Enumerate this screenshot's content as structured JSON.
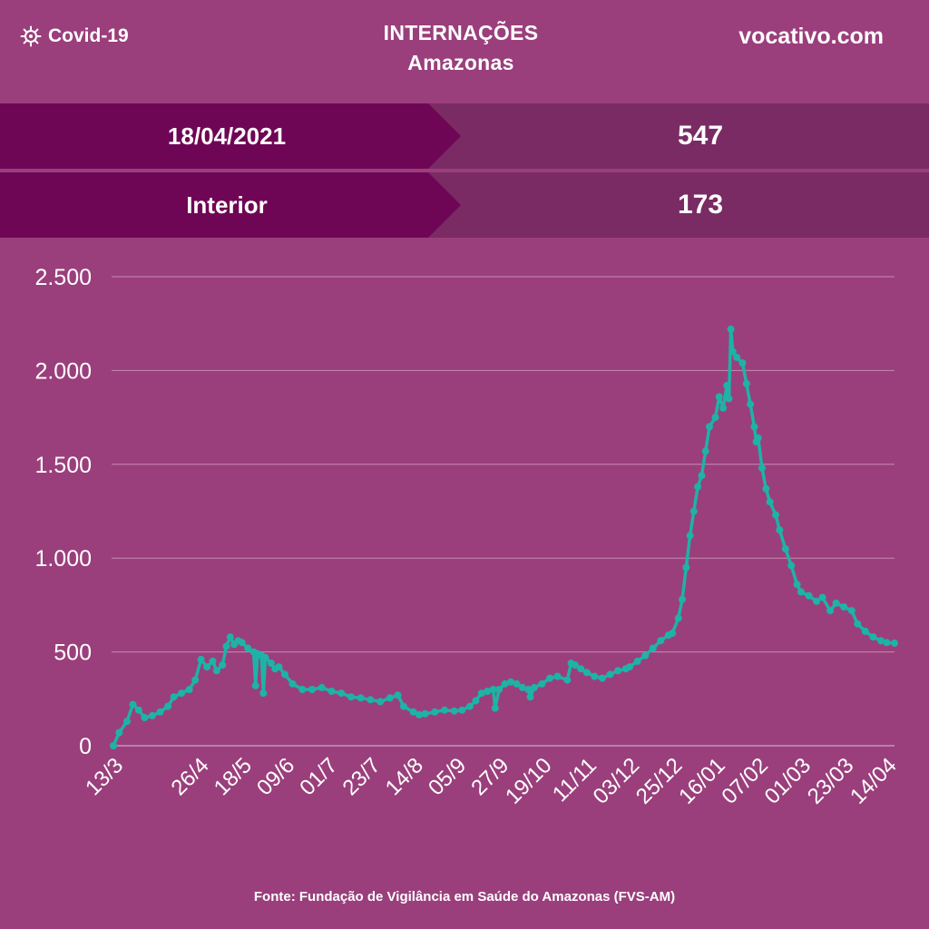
{
  "header": {
    "brand_label": "Covid-19",
    "brand_icon": "virus-icon",
    "title": "INTERNAÇÕES",
    "subtitle": "Amazonas",
    "site": "vocativo.com"
  },
  "stats": [
    {
      "label": "18/04/2021",
      "value": "547"
    },
    {
      "label": "Interior",
      "value": "173"
    }
  ],
  "colors": {
    "background": "#9a3f7c",
    "band_left": "#6f0655",
    "band_right": "#7a2b63",
    "line": "#1db3a6",
    "grid": "#c78bb2"
  },
  "footer": {
    "source": "Fonte: Fundação de Vigilância em Saúde do Amazonas (FVS-AM)"
  },
  "chart_data": {
    "type": "line",
    "title": "",
    "xlabel": "",
    "ylabel": "",
    "ylim": [
      0,
      2500
    ],
    "y_ticks": [
      0,
      500,
      1000,
      1500,
      2000,
      2500
    ],
    "y_tick_labels": [
      "0",
      "500",
      "1.000",
      "1.500",
      "2.000",
      "2.500"
    ],
    "grid": true,
    "x_tick_labels": [
      "13/3",
      "26/4",
      "18/5",
      "09/6",
      "01/7",
      "23/7",
      "14/8",
      "05/9",
      "27/9",
      "19/10",
      "11/11",
      "03/12",
      "25/12",
      "16/01",
      "07/02",
      "01/03",
      "23/03",
      "14/04"
    ],
    "x_tick_dates": [
      "2020-03-13",
      "2020-04-26",
      "2020-05-18",
      "2020-06-09",
      "2020-07-01",
      "2020-07-23",
      "2020-08-14",
      "2020-09-05",
      "2020-09-27",
      "2020-10-19",
      "2020-11-11",
      "2020-12-03",
      "2020-12-25",
      "2021-01-16",
      "2021-02-07",
      "2021-03-01",
      "2021-03-23",
      "2021-04-14"
    ],
    "series": [
      {
        "points": [
          [
            "2020-03-13",
            0
          ],
          [
            "2020-03-16",
            70
          ],
          [
            "2020-03-20",
            130
          ],
          [
            "2020-03-23",
            220
          ],
          [
            "2020-03-26",
            190
          ],
          [
            "2020-03-29",
            150
          ],
          [
            "2020-04-02",
            160
          ],
          [
            "2020-04-06",
            180
          ],
          [
            "2020-04-10",
            210
          ],
          [
            "2020-04-13",
            260
          ],
          [
            "2020-04-17",
            280
          ],
          [
            "2020-04-21",
            300
          ],
          [
            "2020-04-24",
            350
          ],
          [
            "2020-04-27",
            460
          ],
          [
            "2020-04-30",
            420
          ],
          [
            "2020-05-03",
            450
          ],
          [
            "2020-05-05",
            400
          ],
          [
            "2020-05-08",
            430
          ],
          [
            "2020-05-10",
            530
          ],
          [
            "2020-05-12",
            580
          ],
          [
            "2020-05-14",
            540
          ],
          [
            "2020-05-16",
            560
          ],
          [
            "2020-05-18",
            550
          ],
          [
            "2020-05-21",
            520
          ],
          [
            "2020-05-24",
            500
          ],
          [
            "2020-05-25",
            320
          ],
          [
            "2020-05-26",
            490
          ],
          [
            "2020-05-28",
            480
          ],
          [
            "2020-05-29",
            280
          ],
          [
            "2020-05-30",
            470
          ],
          [
            "2020-06-02",
            440
          ],
          [
            "2020-06-04",
            410
          ],
          [
            "2020-06-06",
            420
          ],
          [
            "2020-06-09",
            380
          ],
          [
            "2020-06-13",
            330
          ],
          [
            "2020-06-18",
            300
          ],
          [
            "2020-06-23",
            300
          ],
          [
            "2020-06-28",
            310
          ],
          [
            "2020-07-03",
            290
          ],
          [
            "2020-07-08",
            280
          ],
          [
            "2020-07-13",
            260
          ],
          [
            "2020-07-18",
            255
          ],
          [
            "2020-07-23",
            245
          ],
          [
            "2020-07-28",
            235
          ],
          [
            "2020-08-02",
            255
          ],
          [
            "2020-08-06",
            270
          ],
          [
            "2020-08-09",
            210
          ],
          [
            "2020-08-14",
            180
          ],
          [
            "2020-08-17",
            165
          ],
          [
            "2020-08-20",
            170
          ],
          [
            "2020-08-25",
            180
          ],
          [
            "2020-08-30",
            190
          ],
          [
            "2020-09-04",
            185
          ],
          [
            "2020-09-08",
            190
          ],
          [
            "2020-09-12",
            210
          ],
          [
            "2020-09-15",
            240
          ],
          [
            "2020-09-18",
            280
          ],
          [
            "2020-09-21",
            290
          ],
          [
            "2020-09-24",
            300
          ],
          [
            "2020-09-25",
            200
          ],
          [
            "2020-09-27",
            300
          ],
          [
            "2020-09-30",
            330
          ],
          [
            "2020-10-03",
            340
          ],
          [
            "2020-10-06",
            330
          ],
          [
            "2020-10-09",
            310
          ],
          [
            "2020-10-12",
            300
          ],
          [
            "2020-10-13",
            260
          ],
          [
            "2020-10-15",
            310
          ],
          [
            "2020-10-19",
            330
          ],
          [
            "2020-10-23",
            360
          ],
          [
            "2020-10-27",
            370
          ],
          [
            "2020-11-01",
            350
          ],
          [
            "2020-11-03",
            440
          ],
          [
            "2020-11-05",
            430
          ],
          [
            "2020-11-08",
            410
          ],
          [
            "2020-11-11",
            390
          ],
          [
            "2020-11-15",
            370
          ],
          [
            "2020-11-19",
            360
          ],
          [
            "2020-11-23",
            380
          ],
          [
            "2020-11-27",
            400
          ],
          [
            "2020-12-01",
            410
          ],
          [
            "2020-12-03",
            420
          ],
          [
            "2020-12-07",
            450
          ],
          [
            "2020-12-11",
            480
          ],
          [
            "2020-12-15",
            520
          ],
          [
            "2020-12-19",
            560
          ],
          [
            "2020-12-23",
            590
          ],
          [
            "2020-12-25",
            600
          ],
          [
            "2020-12-28",
            680
          ],
          [
            "2020-12-30",
            780
          ],
          [
            "2021-01-01",
            950
          ],
          [
            "2021-01-03",
            1120
          ],
          [
            "2021-01-05",
            1250
          ],
          [
            "2021-01-07",
            1380
          ],
          [
            "2021-01-09",
            1440
          ],
          [
            "2021-01-11",
            1570
          ],
          [
            "2021-01-13",
            1700
          ],
          [
            "2021-01-16",
            1750
          ],
          [
            "2021-01-18",
            1860
          ],
          [
            "2021-01-20",
            1800
          ],
          [
            "2021-01-22",
            1920
          ],
          [
            "2021-01-23",
            1850
          ],
          [
            "2021-01-24",
            2220
          ],
          [
            "2021-01-25",
            2100
          ],
          [
            "2021-01-27",
            2070
          ],
          [
            "2021-01-30",
            2040
          ],
          [
            "2021-02-01",
            1930
          ],
          [
            "2021-02-03",
            1820
          ],
          [
            "2021-02-05",
            1700
          ],
          [
            "2021-02-06",
            1620
          ],
          [
            "2021-02-07",
            1640
          ],
          [
            "2021-02-09",
            1480
          ],
          [
            "2021-02-11",
            1370
          ],
          [
            "2021-02-13",
            1300
          ],
          [
            "2021-02-16",
            1230
          ],
          [
            "2021-02-18",
            1150
          ],
          [
            "2021-02-21",
            1050
          ],
          [
            "2021-02-24",
            960
          ],
          [
            "2021-02-27",
            860
          ],
          [
            "2021-03-01",
            820
          ],
          [
            "2021-03-05",
            800
          ],
          [
            "2021-03-09",
            770
          ],
          [
            "2021-03-12",
            790
          ],
          [
            "2021-03-16",
            720
          ],
          [
            "2021-03-19",
            760
          ],
          [
            "2021-03-23",
            740
          ],
          [
            "2021-03-27",
            720
          ],
          [
            "2021-03-30",
            650
          ],
          [
            "2021-04-03",
            610
          ],
          [
            "2021-04-07",
            580
          ],
          [
            "2021-04-11",
            560
          ],
          [
            "2021-04-14",
            550
          ],
          [
            "2021-04-18",
            547
          ]
        ]
      }
    ]
  }
}
